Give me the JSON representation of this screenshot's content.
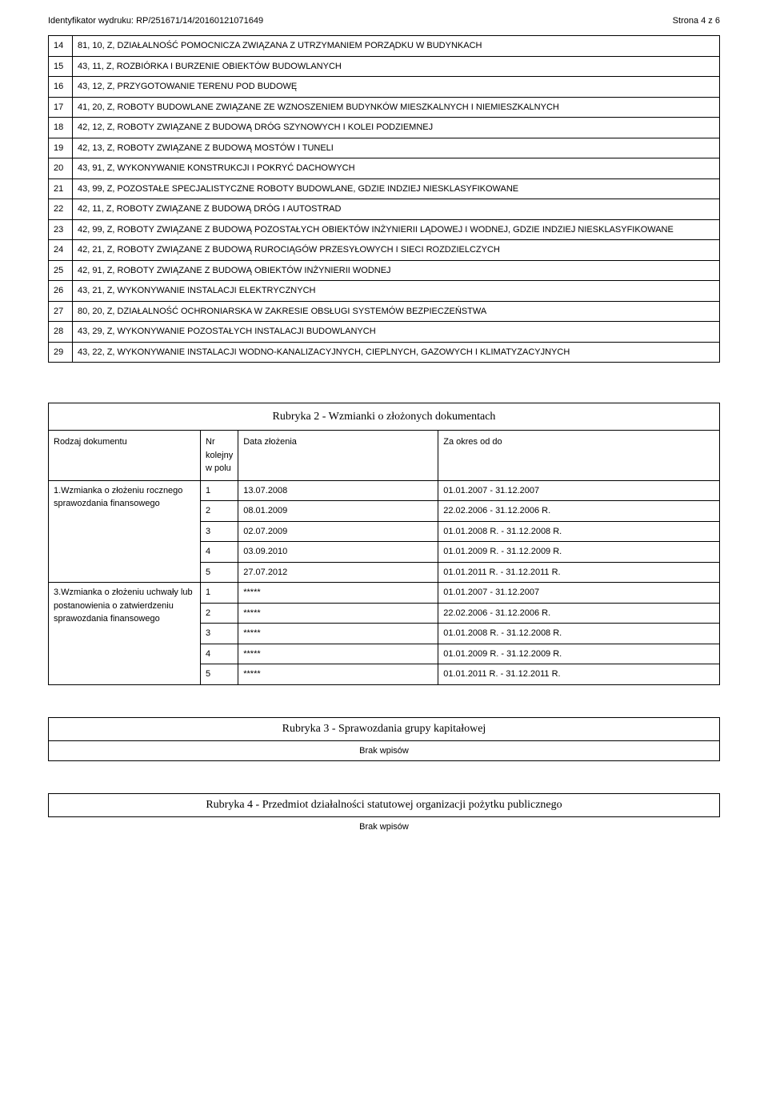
{
  "header": {
    "id_label": "Identyfikator wydruku:",
    "id_value": "RP/251671/14/20160121071649",
    "page_label": "Strona 4 z 6"
  },
  "activities": [
    {
      "n": "14",
      "t": "81, 10, Z, DZIAŁALNOŚĆ POMOCNICZA ZWIĄZANA Z UTRZYMANIEM PORZĄDKU W BUDYNKACH"
    },
    {
      "n": "15",
      "t": "43, 11, Z, ROZBIÓRKA I BURZENIE OBIEKTÓW BUDOWLANYCH"
    },
    {
      "n": "16",
      "t": "43, 12, Z, PRZYGOTOWANIE TERENU POD BUDOWĘ"
    },
    {
      "n": "17",
      "t": "41, 20, Z, ROBOTY BUDOWLANE ZWIĄZANE ZE WZNOSZENIEM BUDYNKÓW MIESZKALNYCH I NIEMIESZKALNYCH"
    },
    {
      "n": "18",
      "t": "42, 12, Z, ROBOTY ZWIĄZANE Z BUDOWĄ DRÓG SZYNOWYCH I KOLEI PODZIEMNEJ"
    },
    {
      "n": "19",
      "t": "42, 13, Z, ROBOTY ZWIĄZANE Z BUDOWĄ MOSTÓW I TUNELI"
    },
    {
      "n": "20",
      "t": "43, 91, Z, WYKONYWANIE KONSTRUKCJI I POKRYĆ DACHOWYCH"
    },
    {
      "n": "21",
      "t": "43, 99, Z, POZOSTAŁE SPECJALISTYCZNE ROBOTY BUDOWLANE, GDZIE INDZIEJ NIESKLASYFIKOWANE"
    },
    {
      "n": "22",
      "t": "42, 11, Z, ROBOTY ZWIĄZANE Z BUDOWĄ DRÓG I AUTOSTRAD"
    },
    {
      "n": "23",
      "t": "42, 99, Z, ROBOTY ZWIĄZANE Z BUDOWĄ POZOSTAŁYCH OBIEKTÓW INŻYNIERII LĄDOWEJ I WODNEJ, GDZIE INDZIEJ NIESKLASYFIKOWANE"
    },
    {
      "n": "24",
      "t": "42, 21, Z, ROBOTY ZWIĄZANE Z BUDOWĄ RUROCIĄGÓW PRZESYŁOWYCH I SIECI ROZDZIELCZYCH"
    },
    {
      "n": "25",
      "t": "42, 91, Z, ROBOTY ZWIĄZANE Z BUDOWĄ OBIEKTÓW INŻYNIERII WODNEJ"
    },
    {
      "n": "26",
      "t": "43, 21, Z, WYKONYWANIE INSTALACJI ELEKTRYCZNYCH"
    },
    {
      "n": "27",
      "t": "80, 20, Z, DZIAŁALNOŚĆ OCHRONIARSKA W ZAKRESIE OBSŁUGI SYSTEMÓW BEZPIECZEŃSTWA"
    },
    {
      "n": "28",
      "t": "43, 29, Z, WYKONYWANIE POZOSTAŁYCH INSTALACJI BUDOWLANYCH"
    },
    {
      "n": "29",
      "t": "43, 22, Z, WYKONYWANIE INSTALACJI WODNO-KANALIZACYJNYCH, CIEPLNYCH, GAZOWYCH I KLIMATYZACYJNYCH"
    }
  ],
  "rubryka2": {
    "title": "Rubryka 2 - Wzmianki o złożonych dokumentach",
    "col_doc": "Rodzaj dokumentu",
    "col_nr": "Nr kolejny w polu",
    "col_date": "Data złożenia",
    "col_period": "Za okres od do",
    "groups": [
      {
        "doc": "1.Wzmianka o złożeniu rocznego sprawozdania finansowego",
        "rows": [
          {
            "nr": "1",
            "d": "13.07.2008",
            "p": "01.01.2007 - 31.12.2007"
          },
          {
            "nr": "2",
            "d": "08.01.2009",
            "p": "22.02.2006 - 31.12.2006 R."
          },
          {
            "nr": "3",
            "d": "02.07.2009",
            "p": "01.01.2008 R. - 31.12.2008 R."
          },
          {
            "nr": "4",
            "d": "03.09.2010",
            "p": "01.01.2009 R. - 31.12.2009 R."
          },
          {
            "nr": "5",
            "d": "27.07.2012",
            "p": "01.01.2011 R. - 31.12.2011 R."
          }
        ]
      },
      {
        "doc": "3.Wzmianka o złożeniu uchwały lub postanowienia o zatwierdzeniu sprawozdania finansowego",
        "rows": [
          {
            "nr": "1",
            "d": "*****",
            "p": "01.01.2007 - 31.12.2007"
          },
          {
            "nr": "2",
            "d": "*****",
            "p": "22.02.2006 - 31.12.2006 R."
          },
          {
            "nr": "3",
            "d": "*****",
            "p": "01.01.2008 R. - 31.12.2008 R."
          },
          {
            "nr": "4",
            "d": "*****",
            "p": "01.01.2009 R. - 31.12.2009 R."
          },
          {
            "nr": "5",
            "d": "*****",
            "p": "01.01.2011 R. - 31.12.2011 R."
          }
        ]
      }
    ]
  },
  "rubryka3": {
    "title": "Rubryka 3 - Sprawozdania grupy kapitałowej",
    "empty": "Brak wpisów"
  },
  "rubryka4": {
    "title": "Rubryka 4 - Przedmiot działalności statutowej organizacji pożytku publicznego",
    "empty": "Brak wpisów"
  }
}
